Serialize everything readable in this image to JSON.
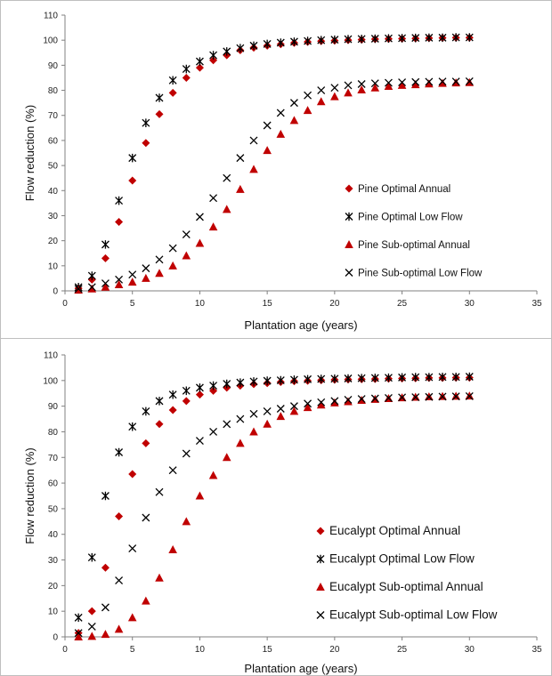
{
  "colors": {
    "red": "#c00000",
    "black": "#000000",
    "axis": "#808080"
  },
  "chart_data": [
    {
      "type": "scatter",
      "xlabel": "Plantation age (years)",
      "ylabel": "Flow reduction (%)",
      "xlim": [
        0,
        35
      ],
      "ylim": [
        0,
        110
      ],
      "xticks": [
        "0",
        "5",
        "10",
        "15",
        "20",
        "25",
        "30",
        "35"
      ],
      "yticks": [
        "0",
        "10",
        "20",
        "30",
        "40",
        "50",
        "60",
        "70",
        "80",
        "90",
        "100",
        "110"
      ],
      "grid": false,
      "legend_position": "right, inside plot",
      "x": [
        1,
        2,
        3,
        4,
        5,
        6,
        7,
        8,
        9,
        10,
        11,
        12,
        13,
        14,
        15,
        16,
        17,
        18,
        19,
        20,
        21,
        22,
        23,
        24,
        25,
        26,
        27,
        28,
        29,
        30
      ],
      "series": [
        {
          "name": "Pine Optimal Annual",
          "marker": "diamond-icon",
          "color": "#c00000",
          "values": [
            1,
            4.5,
            13,
            27.5,
            44,
            59,
            70.5,
            79,
            85,
            89,
            92,
            94,
            96,
            97,
            97.8,
            98.4,
            98.9,
            99.3,
            99.6,
            99.8,
            100,
            100.2,
            100.4,
            100.5,
            100.6,
            100.7,
            100.8,
            100.9,
            101,
            101
          ]
        },
        {
          "name": "Pine Optimal Low Flow",
          "marker": "asterisk-icon",
          "color": "#000000",
          "values": [
            1.5,
            6,
            18.5,
            36,
            53,
            67,
            77,
            84,
            88.5,
            91.5,
            94,
            95.5,
            96.8,
            97.8,
            98.5,
            99,
            99.4,
            99.7,
            100,
            100.2,
            100.4,
            100.5,
            100.6,
            100.7,
            100.8,
            100.9,
            101,
            101,
            101.1,
            101.1
          ]
        },
        {
          "name": "Pine Sub-optimal Annual",
          "marker": "triangle-icon",
          "color": "#c00000",
          "values": [
            0.3,
            0.8,
            1.5,
            2.5,
            3.5,
            5,
            7,
            10,
            14,
            19,
            25.5,
            32.5,
            40.5,
            48.5,
            56,
            62.5,
            68,
            72,
            75.5,
            77.5,
            79,
            80.2,
            81,
            81.6,
            82,
            82.3,
            82.6,
            82.8,
            83,
            83.1
          ]
        },
        {
          "name": "Pine Sub-optimal Low Flow",
          "marker": "x-icon",
          "color": "#000000",
          "values": [
            0.8,
            1.5,
            3,
            4.5,
            6.5,
            9,
            12.5,
            17,
            22.5,
            29.5,
            37,
            45,
            53,
            60,
            66,
            71,
            75,
            78,
            80,
            81,
            82,
            82.5,
            82.8,
            83,
            83.2,
            83.3,
            83.4,
            83.5,
            83.5,
            83.6
          ]
        }
      ]
    },
    {
      "type": "scatter",
      "xlabel": "Plantation age (years)",
      "ylabel": "Flow reduction (%)",
      "xlim": [
        0,
        35
      ],
      "ylim": [
        0,
        110
      ],
      "xticks": [
        "0",
        "5",
        "10",
        "15",
        "20",
        "25",
        "30",
        "35"
      ],
      "yticks": [
        "0",
        "10",
        "20",
        "30",
        "40",
        "50",
        "60",
        "70",
        "80",
        "90",
        "100",
        "110"
      ],
      "grid": false,
      "legend_position": "right, inside plot",
      "x": [
        1,
        2,
        3,
        4,
        5,
        6,
        7,
        8,
        9,
        10,
        11,
        12,
        13,
        14,
        15,
        16,
        17,
        18,
        19,
        20,
        21,
        22,
        23,
        24,
        25,
        26,
        27,
        28,
        29,
        30
      ],
      "series": [
        {
          "name": "Eucalypt Optimal Annual",
          "marker": "diamond-icon",
          "color": "#c00000",
          "values": [
            1.5,
            10,
            27,
            47,
            63.5,
            75.5,
            83,
            88.5,
            92,
            94.5,
            96,
            97.2,
            98,
            98.6,
            99,
            99.4,
            99.7,
            99.9,
            100.1,
            100.3,
            100.4,
            100.5,
            100.6,
            100.7,
            100.8,
            100.9,
            101,
            101,
            101.1,
            101.1
          ]
        },
        {
          "name": "Eucalypt Optimal Low Flow",
          "marker": "asterisk-icon",
          "color": "#000000",
          "values": [
            7.5,
            31,
            55,
            72,
            82,
            88,
            92,
            94.5,
            96,
            97.2,
            98,
            98.7,
            99.2,
            99.6,
            99.9,
            100.1,
            100.3,
            100.5,
            100.6,
            100.7,
            100.8,
            100.9,
            101,
            101.1,
            101.2,
            101.3,
            101.3,
            101.4,
            101.4,
            101.5
          ]
        },
        {
          "name": "Eucalypt Sub-optimal Annual",
          "marker": "triangle-icon",
          "color": "#c00000",
          "values": [
            0,
            0.2,
            1,
            3,
            7.5,
            14,
            23,
            34,
            45,
            55,
            63,
            70,
            75.5,
            80,
            83,
            86,
            88,
            89.5,
            90.5,
            91.3,
            91.8,
            92.3,
            92.7,
            93,
            93.3,
            93.5,
            93.7,
            93.8,
            93.9,
            94
          ]
        },
        {
          "name": "Eucalypt Sub-optimal Low Flow",
          "marker": "x-icon",
          "color": "#000000",
          "values": [
            1.5,
            4,
            11.5,
            22,
            34.5,
            46.5,
            56.5,
            65,
            71.5,
            76.5,
            80,
            83,
            85,
            87,
            88,
            89,
            90,
            91,
            91.5,
            92,
            92.5,
            92.8,
            93,
            93.2,
            93.4,
            93.5,
            93.6,
            93.7,
            93.8,
            93.9
          ]
        }
      ]
    }
  ]
}
